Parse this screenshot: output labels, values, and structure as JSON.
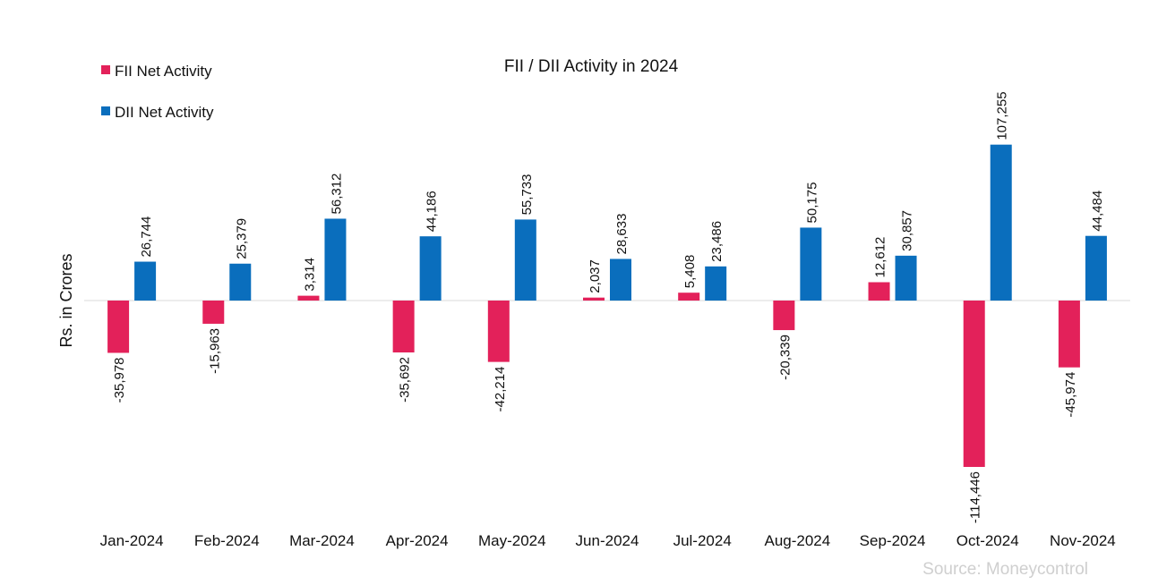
{
  "chart_data": {
    "type": "bar",
    "title": "FII / DII Activity in 2024",
    "xlabel": "",
    "ylabel": "Rs. in Crores",
    "categories": [
      "Jan-2024",
      "Feb-2024",
      "Mar-2024",
      "Apr-2024",
      "May-2024",
      "Jun-2024",
      "Jul-2024",
      "Aug-2024",
      "Sep-2024",
      "Oct-2024",
      "Nov-2024"
    ],
    "series": [
      {
        "name": "FII Net Activity",
        "color": "#e3215a",
        "values": [
          -35978,
          -15963,
          3314,
          -35692,
          -42214,
          2037,
          5408,
          -20339,
          12612,
          -114446,
          -45974
        ],
        "labels": [
          "-35,978",
          "-15,963",
          "3,314",
          "-35,692",
          "-42,214",
          "2,037",
          "5,408",
          "-20,339",
          "12,612",
          "-114,446",
          "-45,974"
        ]
      },
      {
        "name": "DII Net Activity",
        "color": "#0a6ebd",
        "values": [
          26744,
          25379,
          56312,
          44186,
          55733,
          28633,
          23486,
          50175,
          30857,
          107255,
          44484
        ],
        "labels": [
          "26,744",
          "25,379",
          "56,312",
          "44,186",
          "55,733",
          "28,633",
          "23,486",
          "50,175",
          "30,857",
          "107,255",
          "44,484"
        ]
      }
    ],
    "ylim": [
      -155000,
      145000
    ],
    "grid": false,
    "legend_position": "top-left"
  },
  "source": "Source: Moneycontrol"
}
